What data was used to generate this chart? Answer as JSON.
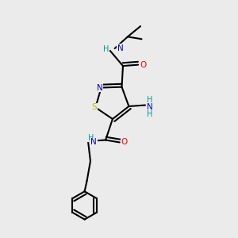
{
  "bg_color": "#ebebeb",
  "bond_color": "#000000",
  "bond_width": 1.5,
  "atom_colors": {
    "N": "#0000cc",
    "O": "#ff0000",
    "S": "#bbbb00",
    "NH": "#009999",
    "NH2": "#009999"
  },
  "figsize": [
    3.0,
    3.0
  ],
  "dpi": 100,
  "xlim": [
    0,
    10
  ],
  "ylim": [
    0,
    10
  ]
}
